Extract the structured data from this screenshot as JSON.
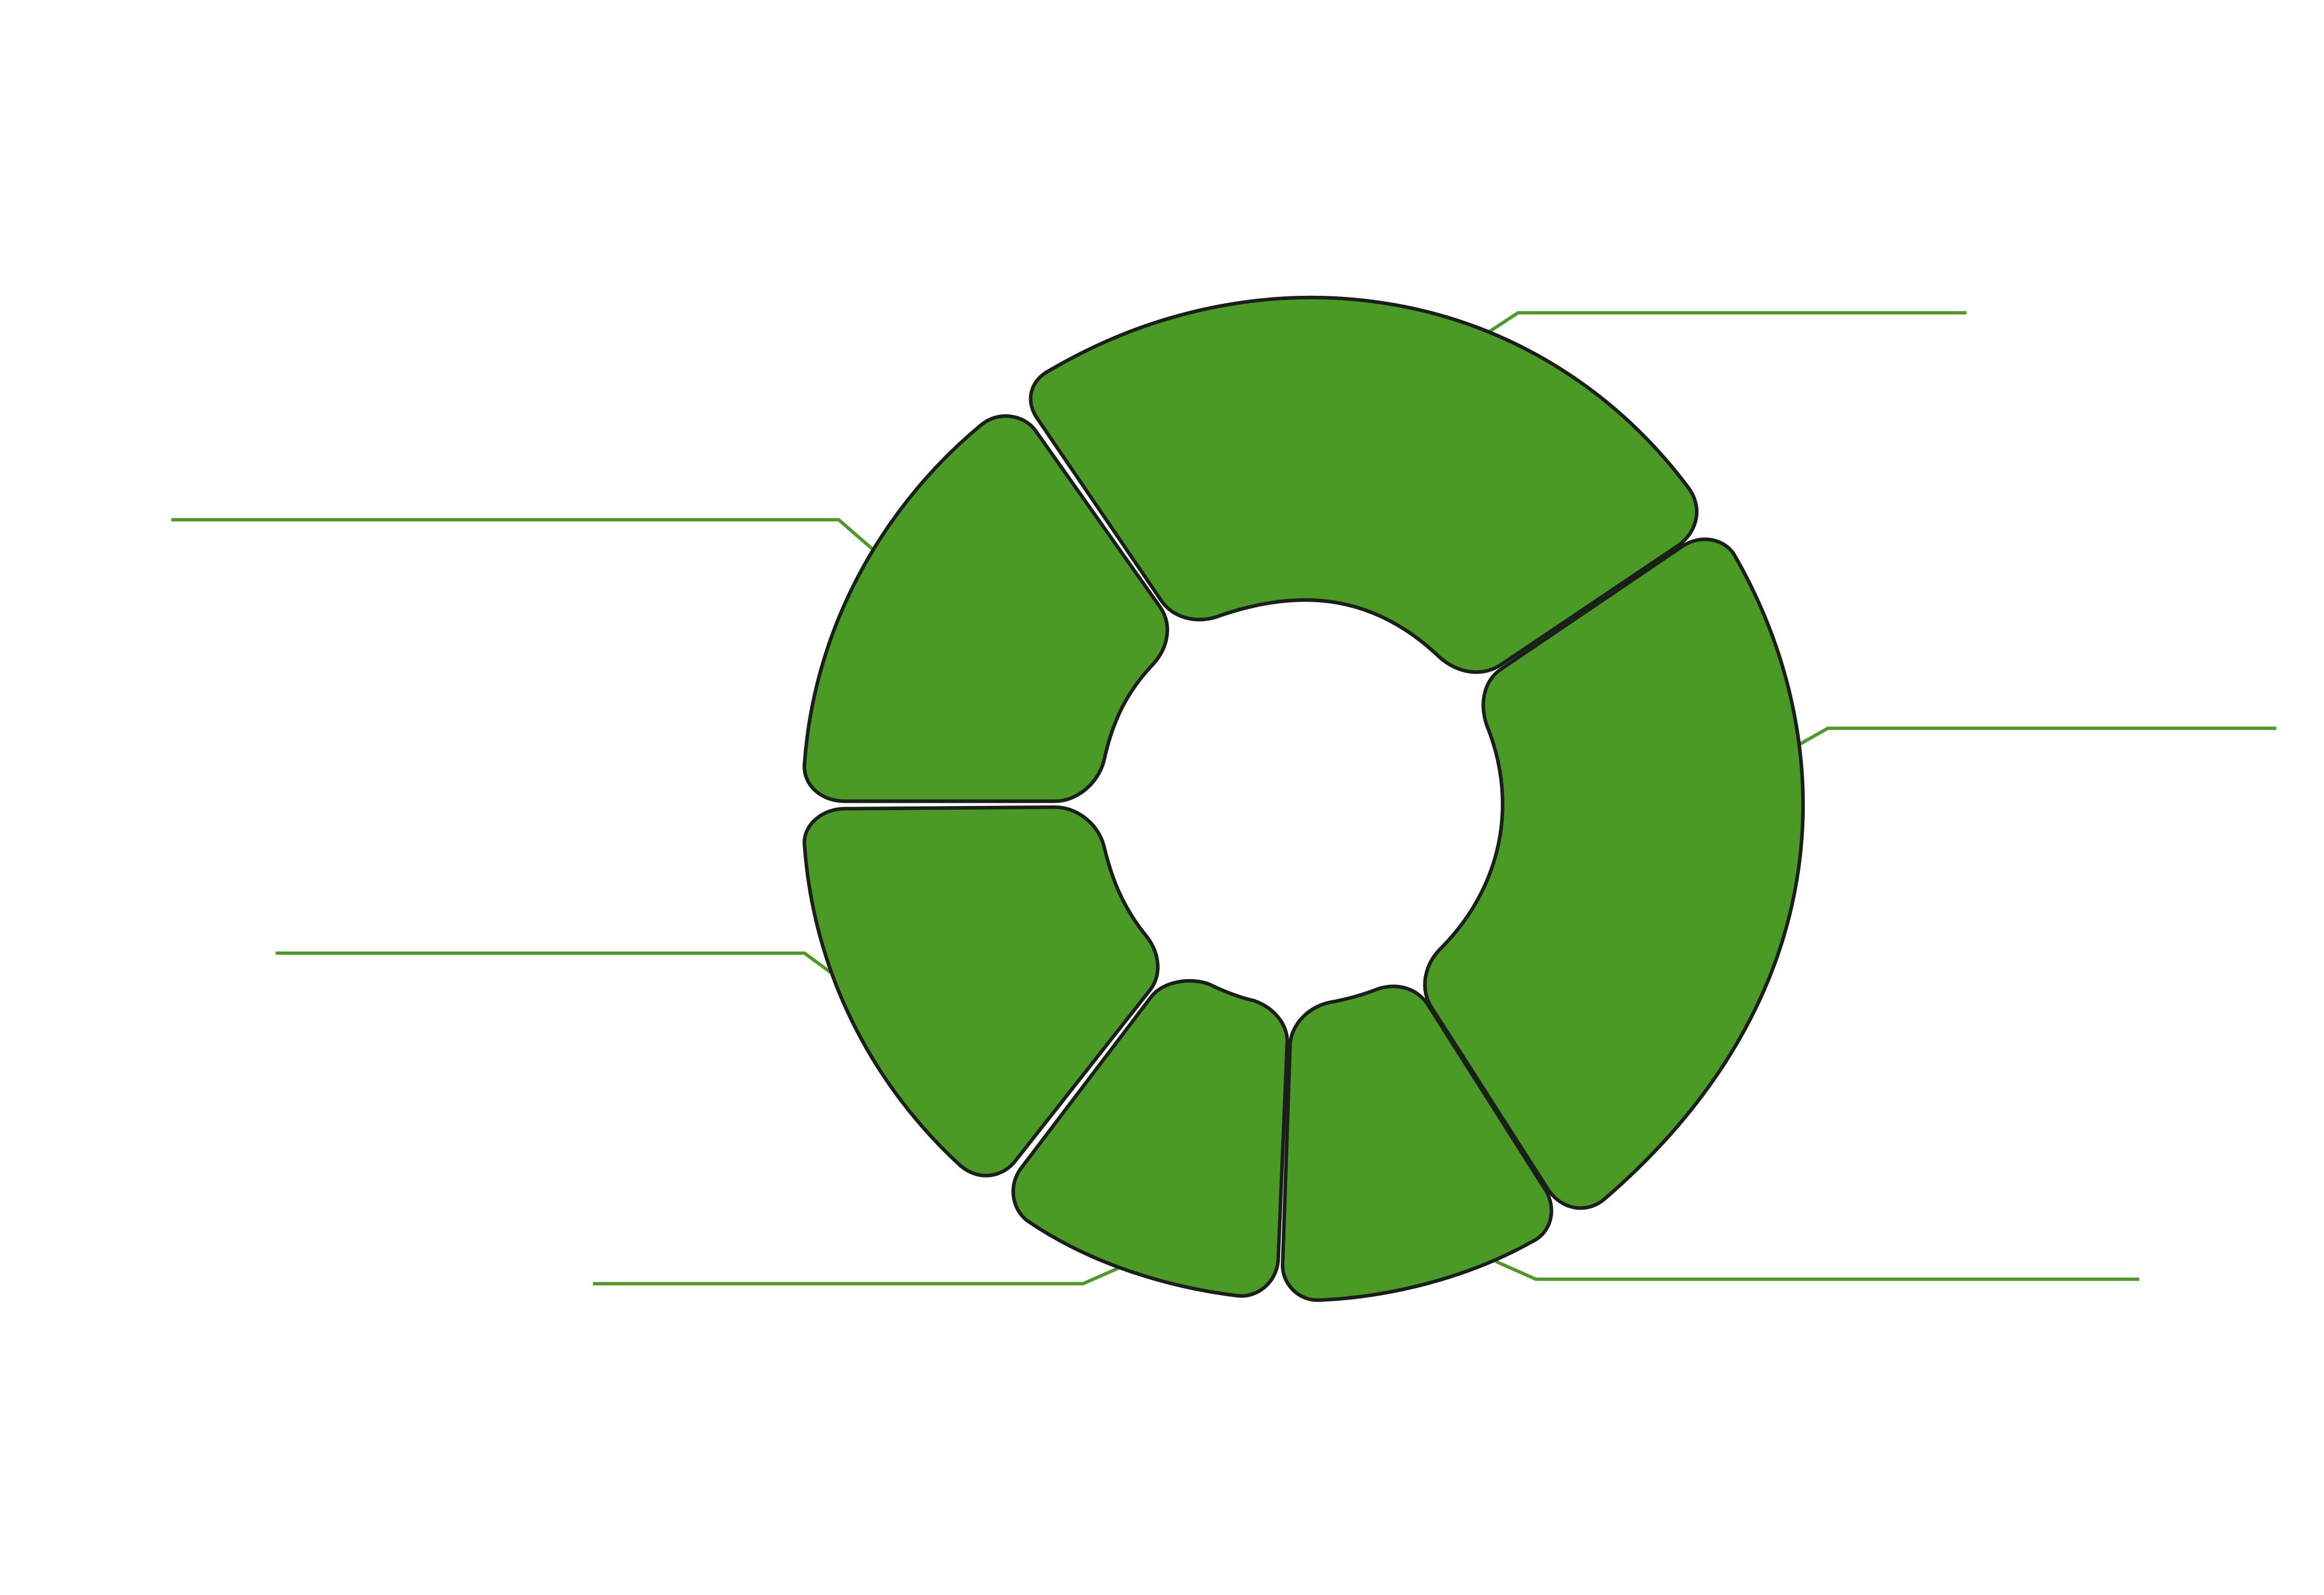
{
  "diagram": {
    "type": "segmented-donut",
    "segment_count": 7,
    "colors": {
      "segment_fill": "#4a9a25",
      "segment_stroke": "#1a1f1a",
      "leader_line": "#4a9a25",
      "background": "#ffffff"
    },
    "segments": [
      {
        "id": "top"
      },
      {
        "id": "right"
      },
      {
        "id": "bottom-right"
      },
      {
        "id": "bottom-center"
      },
      {
        "id": "bottom-left"
      },
      {
        "id": "left-lower"
      },
      {
        "id": "left-upper"
      }
    ]
  }
}
